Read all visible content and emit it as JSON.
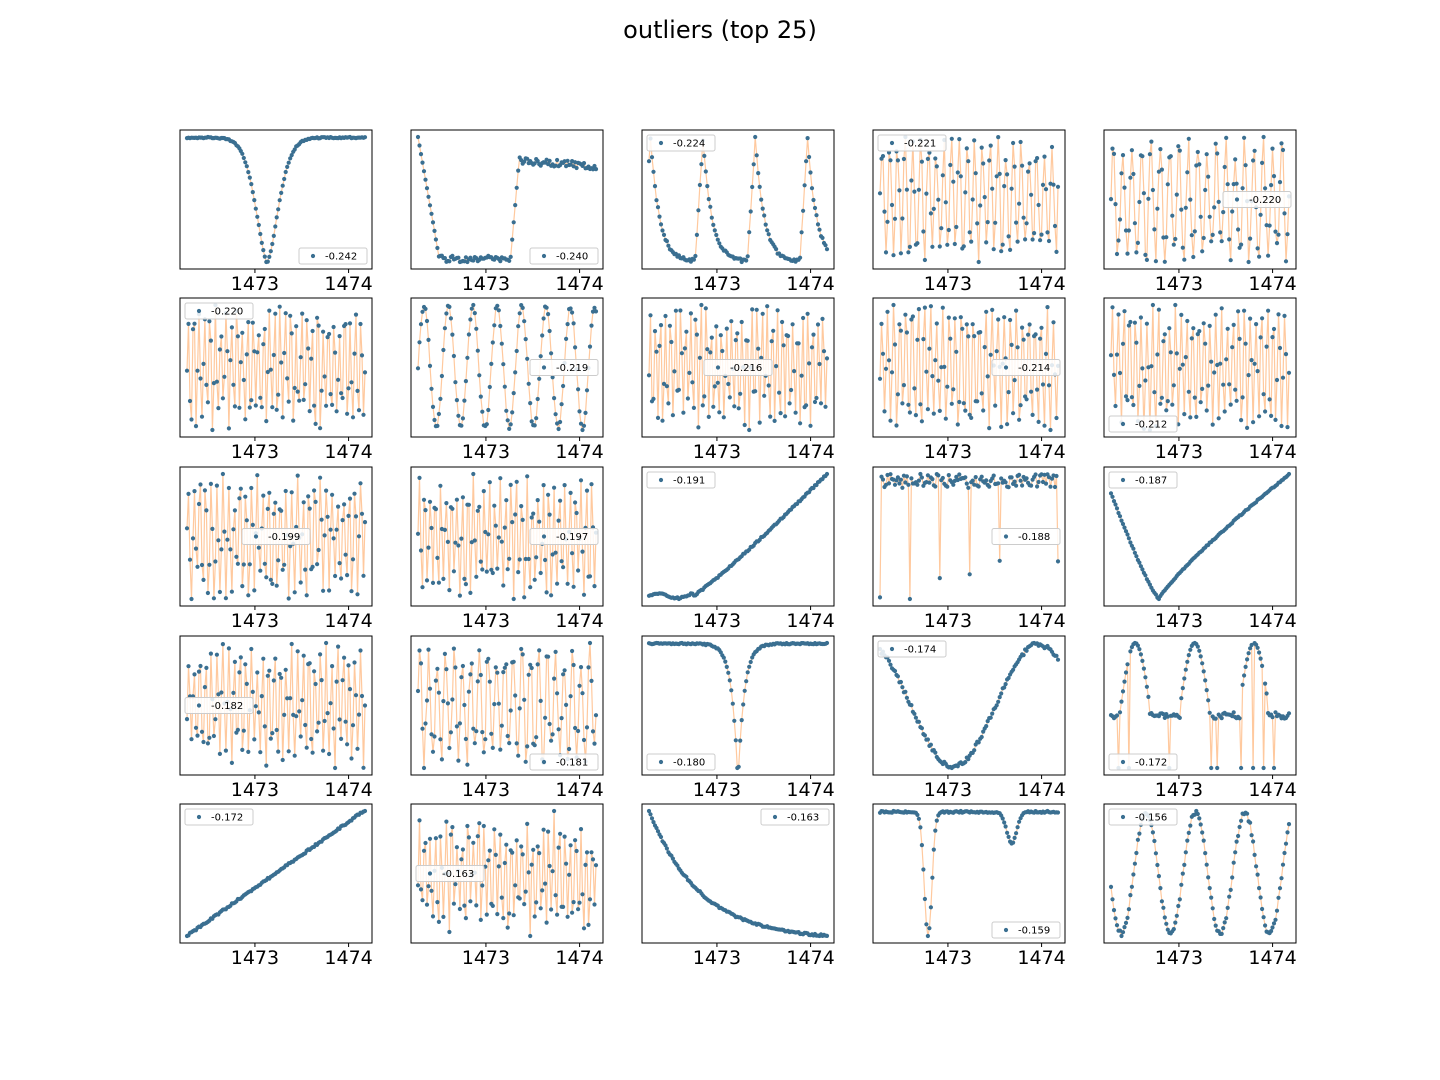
{
  "figure": {
    "title": "outliers (top 25)"
  },
  "colors": {
    "marker": "#3a6f91",
    "line": "#ffc99e",
    "frame": "#000000",
    "background": "#ffffff"
  },
  "chart_data": {
    "type": "scatter",
    "layout": "5x5 small multiples",
    "title": "outliers (top 25)",
    "x_ticks": [
      1473,
      1474
    ],
    "x_range": [
      1472.2,
      1474.25
    ],
    "y_ticks": "none",
    "series_style": "markers with thin connecting line",
    "panels": [
      {
        "legend": "-0.242",
        "legend_loc": "lower-right",
        "shape": "dip",
        "shape_params": [
          0.45,
          0.09,
          1.6
        ]
      },
      {
        "legend": "-0.240",
        "legend_loc": "lower-right",
        "shape": "box",
        "shape_params": [
          0.12,
          0.52
        ]
      },
      {
        "legend": "-0.224",
        "legend_loc": "upper-left",
        "shape": "sawtooth",
        "shape_params": [
          3.4,
          0.12
        ]
      },
      {
        "legend": "-0.221",
        "legend_loc": "upper-left",
        "shape": "zigzag",
        "shape_params": [
          23,
          0.2
        ]
      },
      {
        "legend": "-0.220",
        "legend_loc": "center-right",
        "shape": "zigzag",
        "shape_params": [
          19,
          0.2
        ]
      },
      {
        "legend": "-0.220",
        "legend_loc": "upper-left",
        "shape": "zigzag",
        "shape_params": [
          33,
          0.25
        ]
      },
      {
        "legend": "-0.219",
        "legend_loc": "center-right",
        "shape": "sine",
        "shape_params": [
          7.3,
          0.0
        ]
      },
      {
        "legend": "-0.216",
        "legend_loc": "center",
        "shape": "zigzag",
        "shape_params": [
          35,
          0.2
        ]
      },
      {
        "legend": "-0.214",
        "legend_loc": "center-right",
        "shape": "zigzag",
        "shape_params": [
          29,
          0.2
        ]
      },
      {
        "legend": "-0.212",
        "legend_loc": "lower-left",
        "shape": "zigzag",
        "shape_params": [
          31,
          0.2
        ]
      },
      {
        "legend": "-0.199",
        "legend_loc": "center",
        "shape": "zigzag",
        "shape_params": [
          31,
          0.25
        ]
      },
      {
        "legend": "-0.197",
        "legend_loc": "center-right",
        "shape": "zigzag",
        "shape_params": [
          33,
          0.25
        ]
      },
      {
        "legend": "-0.191",
        "legend_loc": "upper-left",
        "shape": "rise",
        "shape_params": [
          0.0
        ]
      },
      {
        "legend": "-0.188",
        "legend_loc": "center-right",
        "shape": "spikes",
        "shape_params": [
          6,
          0.04
        ]
      },
      {
        "legend": "-0.187",
        "legend_loc": "upper-left",
        "shape": "valley",
        "shape_params": [
          0.27
        ]
      },
      {
        "legend": "-0.182",
        "legend_loc": "center-left",
        "shape": "zigzag",
        "shape_params": [
          31,
          0.25
        ]
      },
      {
        "legend": "-0.181",
        "legend_loc": "lower-right",
        "shape": "zigzag",
        "shape_params": [
          21,
          0.25
        ]
      },
      {
        "legend": "-0.180",
        "legend_loc": "lower-left",
        "shape": "dip",
        "shape_params": [
          0.5,
          0.035,
          1.0
        ]
      },
      {
        "legend": "-0.174",
        "legend_loc": "upper-left",
        "shape": "sine",
        "shape_params": [
          1.05,
          2.0
        ]
      },
      {
        "legend": "-0.172",
        "legend_loc": "lower-left",
        "shape": "hump",
        "shape_params": [
          3.0
        ]
      },
      {
        "legend": "-0.172",
        "legend_loc": "upper-left",
        "shape": "linear",
        "shape_params": [
          0.0
        ]
      },
      {
        "legend": "-0.163",
        "legend_loc": "center-left",
        "shape": "zigzag",
        "shape_params": [
          33,
          0.3
        ]
      },
      {
        "legend": "-0.163",
        "legend_loc": "upper-right",
        "shape": "decay",
        "shape_params": [
          0.0
        ]
      },
      {
        "legend": "-0.159",
        "legend_loc": "lower-right",
        "shape": "eclipse",
        "shape_params": [
          0.27,
          0.74
        ]
      },
      {
        "legend": "-0.156",
        "legend_loc": "upper-left",
        "shape": "sine",
        "shape_params": [
          3.6,
          3.4
        ]
      }
    ]
  }
}
